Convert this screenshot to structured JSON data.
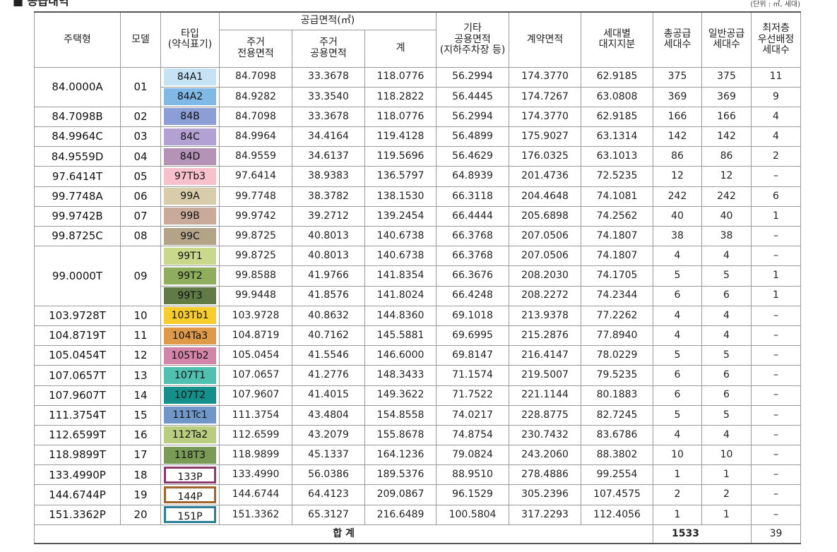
{
  "title": "■ 공급내역",
  "unit": "(단위 : ㎡, 세대)",
  "table": {
    "header": {
      "row1": [
        "주택형",
        "모델",
        "타입\n(약식표기)",
        "공급면적(㎡)",
        "기타\n공용면적\n(지하주차장 등)",
        "계약면적",
        "세대별\n대지지분",
        "총공급\n세대수",
        "일반공급\n세대수",
        "최저층\n우선배정\n세대수"
      ],
      "row2": [
        "주거\n전용면적",
        "주거\n공용면적",
        "계"
      ]
    },
    "groups": [
      {
        "housing": "84.0000A",
        "model": "01",
        "types": [
          {
            "type": "84A1",
            "color": "#c6e3f5",
            "cells": [
              "84.7098",
              "33.3678",
              "118.0776",
              "56.2994",
              "174.3770",
              "62.9185",
              "375",
              "375",
              "11"
            ]
          },
          {
            "type": "84A2",
            "color": "#80b9e6",
            "cells": [
              "84.9282",
              "33.3540",
              "118.2822",
              "56.4445",
              "174.7267",
              "63.0808",
              "369",
              "369",
              "9"
            ]
          }
        ]
      },
      {
        "housing": "84.7098B",
        "model": "02",
        "types": [
          {
            "type": "84B",
            "color": "#8b9fd6",
            "cells": [
              "84.7098",
              "33.3678",
              "118.0776",
              "56.2994",
              "174.3770",
              "62.9185",
              "166",
              "166",
              "4"
            ]
          }
        ]
      },
      {
        "housing": "84.9964C",
        "model": "03",
        "types": [
          {
            "type": "84C",
            "color": "#b4a1d3",
            "cells": [
              "84.9964",
              "34.4164",
              "119.4128",
              "56.4899",
              "175.9027",
              "63.1314",
              "142",
              "142",
              "4"
            ]
          }
        ]
      },
      {
        "housing": "84.9559D",
        "model": "04",
        "types": [
          {
            "type": "84D",
            "color": "#b593b6",
            "cells": [
              "84.9559",
              "34.6137",
              "119.5696",
              "56.4629",
              "176.0325",
              "63.1013",
              "86",
              "86",
              "2"
            ]
          }
        ]
      },
      {
        "housing": "97.6414T",
        "model": "05",
        "types": [
          {
            "type": "97Tb3",
            "color": "#f6c0cc",
            "cells": [
              "97.6414",
              "38.9383",
              "136.5797",
              "64.8939",
              "201.4736",
              "72.5235",
              "12",
              "12",
              "–"
            ]
          }
        ]
      },
      {
        "housing": "99.7748A",
        "model": "06",
        "types": [
          {
            "type": "99A",
            "color": "#d8ccab",
            "cells": [
              "99.7748",
              "38.3782",
              "138.1530",
              "66.3118",
              "204.4648",
              "74.1081",
              "242",
              "242",
              "6"
            ]
          }
        ]
      },
      {
        "housing": "99.9742B",
        "model": "07",
        "types": [
          {
            "type": "99B",
            "color": "#c9a99a",
            "cells": [
              "99.9742",
              "39.2712",
              "139.2454",
              "66.4444",
              "205.6898",
              "74.2562",
              "40",
              "40",
              "1"
            ]
          }
        ]
      },
      {
        "housing": "99.8725C",
        "model": "08",
        "types": [
          {
            "type": "99C",
            "color": "#b3a387",
            "cells": [
              "99.8725",
              "40.8013",
              "140.6738",
              "66.3768",
              "207.0506",
              "74.1807",
              "38",
              "38",
              "–"
            ]
          }
        ]
      },
      {
        "housing": "99.0000T",
        "model": "09",
        "types": [
          {
            "type": "99T1",
            "color": "#c9d98b",
            "cells": [
              "99.8725",
              "40.8013",
              "140.6738",
              "66.3768",
              "207.0506",
              "74.1807",
              "4",
              "4",
              "–"
            ]
          },
          {
            "type": "99T2",
            "color": "#8fae5d",
            "cells": [
              "99.8588",
              "41.9766",
              "141.8354",
              "66.3676",
              "208.2030",
              "74.1705",
              "5",
              "5",
              "1"
            ]
          },
          {
            "type": "99T3",
            "color": "#607b46",
            "cells": [
              "99.9448",
              "41.8576",
              "141.8024",
              "66.4248",
              "208.2272",
              "74.2344",
              "6",
              "6",
              "1"
            ]
          }
        ]
      },
      {
        "housing": "103.9728T",
        "model": "10",
        "types": [
          {
            "type": "103Tb1",
            "color": "#f6cd2b",
            "cells": [
              "103.9728",
              "40.8632",
              "144.8360",
              "69.1018",
              "213.9378",
              "77.2262",
              "4",
              "4",
              "–"
            ]
          }
        ]
      },
      {
        "housing": "104.8719T",
        "model": "11",
        "types": [
          {
            "type": "104Ta3",
            "color": "#de9a46",
            "cells": [
              "104.8719",
              "40.7162",
              "145.5881",
              "69.6995",
              "215.2876",
              "77.8940",
              "4",
              "4",
              "–"
            ]
          }
        ]
      },
      {
        "housing": "105.0454T",
        "model": "12",
        "types": [
          {
            "type": "105Tb2",
            "color": "#d285a9",
            "cells": [
              "105.0454",
              "41.5546",
              "146.6000",
              "69.8147",
              "216.4147",
              "78.0229",
              "5",
              "5",
              "–"
            ]
          }
        ]
      },
      {
        "housing": "107.0657T",
        "model": "13",
        "types": [
          {
            "type": "107T1",
            "color": "#50c0b1",
            "cells": [
              "107.0657",
              "41.2776",
              "148.3433",
              "71.1574",
              "219.5007",
              "79.5235",
              "6",
              "6",
              "–"
            ]
          }
        ]
      },
      {
        "housing": "107.9607T",
        "model": "14",
        "types": [
          {
            "type": "107T2",
            "color": "#14908a",
            "cells": [
              "107.9607",
              "41.4015",
              "149.3622",
              "71.7522",
              "221.1144",
              "80.1883",
              "6",
              "6",
              "–"
            ]
          }
        ]
      },
      {
        "housing": "111.3754T",
        "model": "15",
        "types": [
          {
            "type": "111Tc1",
            "color": "#7097c8",
            "cells": [
              "111.3754",
              "43.4804",
              "154.8558",
              "74.0217",
              "228.8775",
              "82.7245",
              "5",
              "5",
              "–"
            ]
          }
        ]
      },
      {
        "housing": "112.6599T",
        "model": "16",
        "types": [
          {
            "type": "112Ta2",
            "color": "#bacd7f",
            "cells": [
              "112.6599",
              "43.2079",
              "155.8678",
              "74.8754",
              "230.7432",
              "83.6786",
              "4",
              "4",
              "–"
            ]
          }
        ]
      },
      {
        "housing": "118.9899T",
        "model": "17",
        "types": [
          {
            "type": "118T3",
            "color": "#799b56",
            "cells": [
              "118.9899",
              "45.1337",
              "164.1236",
              "79.0824",
              "243.2060",
              "88.3802",
              "10",
              "10",
              "–"
            ]
          }
        ]
      },
      {
        "housing": "133.4990P",
        "model": "18",
        "types": [
          {
            "type": "133P",
            "border": "#8c3b6e",
            "cells": [
              "133.4990",
              "56.0386",
              "189.5376",
              "88.9510",
              "278.4886",
              "99.2554",
              "1",
              "1",
              "–"
            ]
          }
        ]
      },
      {
        "housing": "144.6744P",
        "model": "19",
        "types": [
          {
            "type": "144P",
            "border": "#a0652a",
            "cells": [
              "144.6744",
              "64.4123",
              "209.0867",
              "96.1529",
              "305.2396",
              "107.4575",
              "2",
              "2",
              "–"
            ]
          }
        ]
      },
      {
        "housing": "151.3362P",
        "model": "20",
        "types": [
          {
            "type": "151P",
            "border": "#2a7f94",
            "cells": [
              "151.3362",
              "65.3127",
              "216.6489",
              "100.5804",
              "317.2293",
              "112.4056",
              "1",
              "1",
              "–"
            ]
          }
        ]
      }
    ],
    "total": {
      "label": "합 계",
      "supply": "1533",
      "lowest": "39"
    }
  }
}
